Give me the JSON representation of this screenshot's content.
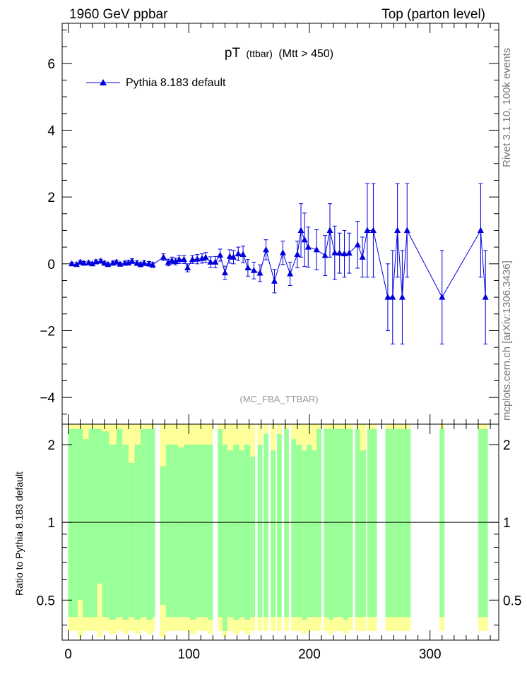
{
  "header": {
    "left_label": "1960 GeV ppbar",
    "right_label": "Top (parton level)"
  },
  "side_labels": {
    "rivet": "Rivet 3.1.10,  100k events",
    "source": "mcplots.cern.ch [arXiv:1306.3436]"
  },
  "chart_data": [
    {
      "type": "scatter",
      "title_main": "pT",
      "title_sub": "(ttbar)",
      "title_cut": "(Mtt > 450)",
      "watermark": "(MC_FBA_TTBAR)",
      "xlim": [
        -5,
        357
      ],
      "ylim": [
        -4.8,
        7.2
      ],
      "yticks": [
        -4,
        -2,
        0,
        2,
        4,
        6
      ],
      "ytick_labels": [
        "−4",
        "−2",
        "0",
        "2",
        "4",
        "6"
      ],
      "legend": {
        "label": "Pythia 8.183 default",
        "placement": "top-left"
      },
      "series": [
        {
          "name": "Pythia 8.183 default",
          "color": "#0000dd",
          "x": [
            3,
            7,
            10,
            13,
            17,
            20,
            23,
            27,
            30,
            33,
            37,
            40,
            43,
            47,
            50,
            53,
            57,
            60,
            63,
            67,
            70,
            79,
            83,
            86,
            89,
            92,
            96,
            99,
            103,
            107,
            111,
            114,
            118,
            122,
            126,
            130,
            134,
            137,
            141,
            145,
            149,
            154,
            159,
            164,
            171,
            178,
            184,
            190,
            193,
            196,
            199,
            206,
            213,
            217,
            221,
            225,
            229,
            233,
            240,
            244,
            248,
            253,
            265,
            269,
            273,
            277,
            281,
            310,
            342,
            346
          ],
          "y": [
            0.0,
            -0.02,
            0.05,
            0.02,
            0.03,
            0.0,
            0.06,
            0.08,
            0.02,
            -0.02,
            0.02,
            0.05,
            -0.01,
            0.02,
            0.03,
            0.08,
            0.02,
            -0.02,
            0.02,
            0.0,
            -0.03,
            0.2,
            0.04,
            0.1,
            0.07,
            0.13,
            0.13,
            -0.12,
            0.13,
            0.14,
            0.16,
            0.19,
            0.05,
            0.05,
            0.26,
            -0.27,
            0.22,
            0.2,
            0.3,
            0.28,
            -0.12,
            -0.2,
            -0.28,
            0.42,
            -0.52,
            0.33,
            -0.3,
            0.28,
            1.0,
            0.72,
            0.5,
            0.42,
            0.25,
            1.0,
            0.33,
            0.32,
            0.3,
            0.32,
            0.57,
            0.2,
            1.0,
            1.0,
            -1.0,
            -1.0,
            1.0,
            -1.0,
            1.0,
            -1.0,
            1.0,
            -1.0
          ],
          "yerr": [
            0.05,
            0.05,
            0.05,
            0.05,
            0.05,
            0.05,
            0.06,
            0.06,
            0.06,
            0.06,
            0.06,
            0.06,
            0.06,
            0.06,
            0.07,
            0.07,
            0.07,
            0.07,
            0.07,
            0.07,
            0.08,
            0.1,
            0.1,
            0.1,
            0.1,
            0.12,
            0.12,
            0.12,
            0.12,
            0.14,
            0.14,
            0.15,
            0.16,
            0.17,
            0.18,
            0.2,
            0.2,
            0.2,
            0.2,
            0.25,
            0.25,
            0.25,
            0.25,
            0.3,
            0.35,
            0.35,
            0.35,
            0.4,
            0.8,
            0.8,
            0.6,
            0.6,
            0.6,
            0.8,
            0.8,
            0.6,
            0.7,
            0.6,
            0.7,
            0.6,
            1.4,
            1.4,
            1.0,
            1.4,
            1.4,
            1.4,
            1.4,
            1.4,
            1.4,
            1.4
          ]
        }
      ]
    },
    {
      "type": "area",
      "ylabel": "Ratio to Pythia 8.183 default",
      "xlim": [
        -5,
        357
      ],
      "ylog": true,
      "ylim": [
        0.35,
        2.4
      ],
      "yticks": [
        0.5,
        1,
        2
      ],
      "ytick_labels": [
        "0.5",
        "1",
        "2"
      ],
      "xticks": [
        0,
        100,
        200,
        300
      ],
      "xtick_labels": [
        "0",
        "100",
        "200",
        "300"
      ],
      "reference_line": 1,
      "colors": {
        "inner": "#99ff99",
        "outer": "#ffff99"
      },
      "band_bins": [
        [
          0,
          8,
          0.43,
          2.3,
          0.38,
          2.4
        ],
        [
          8,
          12,
          0.5,
          2.3,
          0.36,
          2.4
        ],
        [
          12,
          17,
          0.43,
          2.1,
          0.38,
          2.4
        ],
        [
          17,
          24,
          0.43,
          2.3,
          0.38,
          2.4
        ],
        [
          24,
          28,
          0.58,
          2.3,
          0.36,
          2.4
        ],
        [
          28,
          34,
          0.43,
          2.25,
          0.38,
          2.4
        ],
        [
          34,
          40,
          0.42,
          2.0,
          0.37,
          2.4
        ],
        [
          40,
          45,
          0.43,
          2.3,
          0.38,
          2.4
        ],
        [
          45,
          50,
          0.42,
          2.0,
          0.37,
          2.4
        ],
        [
          50,
          55,
          0.43,
          1.7,
          0.38,
          2.4
        ],
        [
          55,
          60,
          0.42,
          2.0,
          0.37,
          2.4
        ],
        [
          60,
          65,
          0.43,
          2.3,
          0.38,
          2.4
        ],
        [
          65,
          70,
          0.42,
          2.3,
          0.37,
          2.4
        ],
        [
          70,
          72,
          0.43,
          2.3,
          0.38,
          2.4
        ],
        [
          76,
          81,
          0.48,
          1.65,
          0.36,
          2.4
        ],
        [
          81,
          86,
          0.43,
          2.0,
          0.38,
          2.4
        ],
        [
          86,
          91,
          0.43,
          2.0,
          0.38,
          2.4
        ],
        [
          91,
          96,
          0.43,
          1.95,
          0.38,
          2.4
        ],
        [
          96,
          101,
          0.43,
          2.0,
          0.38,
          2.4
        ],
        [
          101,
          106,
          0.42,
          2.0,
          0.37,
          2.4
        ],
        [
          106,
          110,
          0.43,
          2.0,
          0.38,
          2.4
        ],
        [
          110,
          116,
          0.43,
          2.0,
          0.38,
          2.4
        ],
        [
          116,
          120,
          0.42,
          2.0,
          0.37,
          2.4
        ],
        [
          124,
          128,
          0.43,
          2.3,
          0.38,
          2.4
        ],
        [
          128,
          132,
          0.38,
          2.0,
          0.36,
          2.4
        ],
        [
          132,
          137,
          0.43,
          1.9,
          0.38,
          2.4
        ],
        [
          137,
          142,
          0.42,
          2.0,
          0.37,
          2.4
        ],
        [
          142,
          146,
          0.43,
          1.9,
          0.38,
          2.4
        ],
        [
          146,
          151,
          0.42,
          2.0,
          0.37,
          2.4
        ],
        [
          151,
          155,
          0.43,
          1.8,
          0.38,
          2.4
        ],
        [
          157,
          161,
          0.43,
          2.0,
          0.38,
          2.4
        ],
        [
          162,
          166,
          0.43,
          2.2,
          0.38,
          2.4
        ],
        [
          168,
          172,
          0.43,
          1.9,
          0.38,
          2.4
        ],
        [
          173,
          177,
          0.43,
          2.2,
          0.38,
          2.4
        ],
        [
          179,
          183,
          0.43,
          2.3,
          0.38,
          2.4
        ],
        [
          185,
          189,
          0.43,
          2.1,
          0.38,
          2.4
        ],
        [
          189,
          194,
          0.43,
          2.0,
          0.38,
          2.4
        ],
        [
          194,
          198,
          0.42,
          1.9,
          0.37,
          2.4
        ],
        [
          198,
          202,
          0.43,
          2.0,
          0.38,
          2.4
        ],
        [
          202,
          206,
          0.43,
          1.9,
          0.38,
          2.4
        ],
        [
          206,
          210,
          0.43,
          2.3,
          0.38,
          2.4
        ],
        [
          212,
          216,
          0.43,
          2.3,
          0.38,
          2.4
        ],
        [
          216,
          220,
          0.42,
          2.3,
          0.37,
          2.4
        ],
        [
          220,
          224,
          0.43,
          2.3,
          0.38,
          2.4
        ],
        [
          224,
          228,
          0.43,
          2.3,
          0.38,
          2.4
        ],
        [
          228,
          232,
          0.42,
          2.3,
          0.37,
          2.4
        ],
        [
          232,
          236,
          0.43,
          2.3,
          0.38,
          2.4
        ],
        [
          238,
          242,
          0.43,
          2.3,
          0.38,
          2.4
        ],
        [
          242,
          247,
          0.43,
          1.9,
          0.38,
          2.4
        ],
        [
          248,
          252,
          0.43,
          2.3,
          0.38,
          2.4
        ],
        [
          252,
          256,
          0.43,
          2.3,
          0.38,
          2.4
        ],
        [
          263,
          267,
          0.43,
          2.3,
          0.38,
          2.4
        ],
        [
          267,
          271,
          0.43,
          2.3,
          0.38,
          2.4
        ],
        [
          271,
          275,
          0.43,
          2.3,
          0.38,
          2.4
        ],
        [
          275,
          279,
          0.43,
          2.3,
          0.38,
          2.4
        ],
        [
          279,
          284,
          0.43,
          2.3,
          0.38,
          2.4
        ],
        [
          308,
          312,
          0.43,
          2.3,
          0.38,
          2.4
        ],
        [
          340,
          344,
          0.43,
          2.3,
          0.38,
          2.4
        ],
        [
          344,
          348,
          0.43,
          2.3,
          0.38,
          2.4
        ]
      ]
    }
  ]
}
